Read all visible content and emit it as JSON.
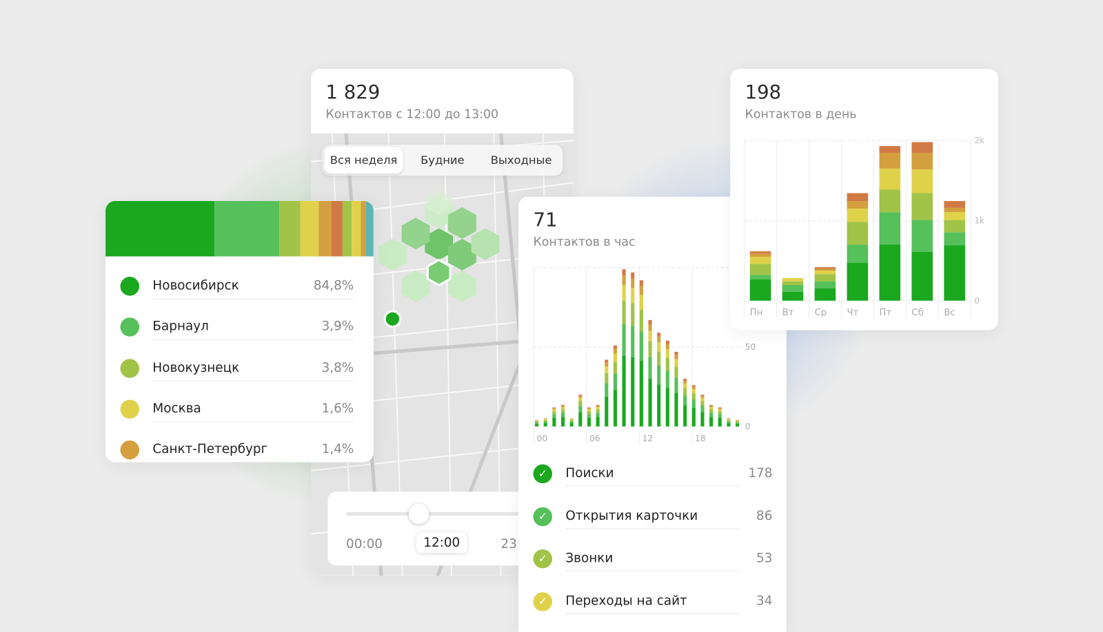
{
  "colors": {
    "green": "#1ba81f",
    "light_green": "#56c05a",
    "olive": "#a1c348",
    "yellow": "#dfd24a",
    "ochre": "#d4a03f",
    "orange": "#d27a45",
    "teal": "#5cb5b5"
  },
  "map_card": {
    "value": "1 829",
    "caption": "Контактов с 12:00 до 13:00",
    "tabs": [
      {
        "label": "Вся неделя",
        "active": true
      },
      {
        "label": "Будние"
      },
      {
        "label": "Выходные"
      }
    ],
    "slider": {
      "start": "00:00",
      "selected": "12:00",
      "end": "23",
      "value_hour": 12
    }
  },
  "cities_card": {
    "share_strip": [
      {
        "color": "#1ba81f",
        "share": 40.7
      },
      {
        "color": "#56c05a",
        "share": 24.1
      },
      {
        "color": "#a1c348",
        "share": 7.9
      },
      {
        "color": "#dfd24a",
        "share": 6.8
      },
      {
        "color": "#d4a03f",
        "share": 4.7
      },
      {
        "color": "#d27a45",
        "share": 4.2
      },
      {
        "color": "#a1c348",
        "share": 3.4
      },
      {
        "color": "#dfd24a",
        "share": 3.4
      },
      {
        "color": "#d4a03f",
        "share": 1.8
      },
      {
        "color": "#5cb5b5",
        "share": 3.0
      }
    ],
    "items": [
      {
        "name": "Новосибирск",
        "value": "84,8%",
        "color": "#1ba81f"
      },
      {
        "name": "Барнаул",
        "value": "3,9%",
        "color": "#56c05a"
      },
      {
        "name": "Новокузнецк",
        "value": "3,8%",
        "color": "#a1c348"
      },
      {
        "name": "Москва",
        "value": "1,6%",
        "color": "#dfd24a"
      },
      {
        "name": "Санкт-Петербург",
        "value": "1,4%",
        "color": "#d4a03f"
      }
    ]
  },
  "hourly_card": {
    "value": "71",
    "caption": "Контактов в час",
    "actions": [
      {
        "name": "Поиски",
        "value": "178",
        "color": "#1ba81f"
      },
      {
        "name": "Открытия карточки",
        "value": "86",
        "color": "#56c05a"
      },
      {
        "name": "Звонки",
        "value": "53",
        "color": "#a1c348"
      },
      {
        "name": "Переходы на сайт",
        "value": "34",
        "color": "#dfd24a"
      }
    ]
  },
  "daily_card": {
    "value": "198",
    "caption": "Контактов в день"
  },
  "chart_data": [
    {
      "type": "bar",
      "stacked": true,
      "title": "Контактов в час",
      "x": [
        0,
        1,
        2,
        3,
        4,
        5,
        6,
        7,
        8,
        9,
        10,
        11,
        12,
        13,
        14,
        15,
        16,
        17,
        18,
        19,
        20,
        21,
        22,
        23
      ],
      "xticks": [
        "00",
        "06",
        "12",
        "18"
      ],
      "yticks": [
        "0",
        "50"
      ],
      "ylim": [
        0,
        100
      ],
      "totals": [
        4,
        5,
        12,
        13.5,
        5,
        20,
        12,
        13.5,
        42,
        51,
        99,
        97,
        92,
        67,
        59,
        54,
        47,
        30,
        26,
        20,
        13.5,
        12,
        5,
        4
      ],
      "segment_shares": [
        0.45,
        0.2,
        0.15,
        0.1,
        0.06,
        0.04
      ]
    },
    {
      "type": "bar",
      "stacked": true,
      "title": "Контактов в день",
      "categories": [
        "Пн",
        "Вт",
        "Ср",
        "Чт",
        "Пт",
        "Сб",
        "Вс"
      ],
      "yticks": [
        "0",
        "1k",
        "2k"
      ],
      "ylim": [
        0,
        2000
      ],
      "series": [
        {
          "name": "green",
          "values": [
            264,
            111,
            156,
            474,
            702,
            611,
            690
          ]
        },
        {
          "name": "light_green",
          "values": [
            57,
            85,
            85,
            227,
            403,
            398,
            165
          ]
        },
        {
          "name": "olive",
          "values": [
            139,
            45,
            91,
            284,
            281,
            335,
            151
          ]
        },
        {
          "name": "yellow",
          "values": [
            88,
            40,
            43,
            165,
            264,
            295,
            99
          ]
        },
        {
          "name": "ochre",
          "values": [
            40,
            0,
            23,
            94,
            196,
            207,
            54
          ]
        },
        {
          "name": "orange",
          "values": [
            28,
            0,
            20,
            99,
            85,
            134,
            85
          ]
        }
      ]
    }
  ]
}
